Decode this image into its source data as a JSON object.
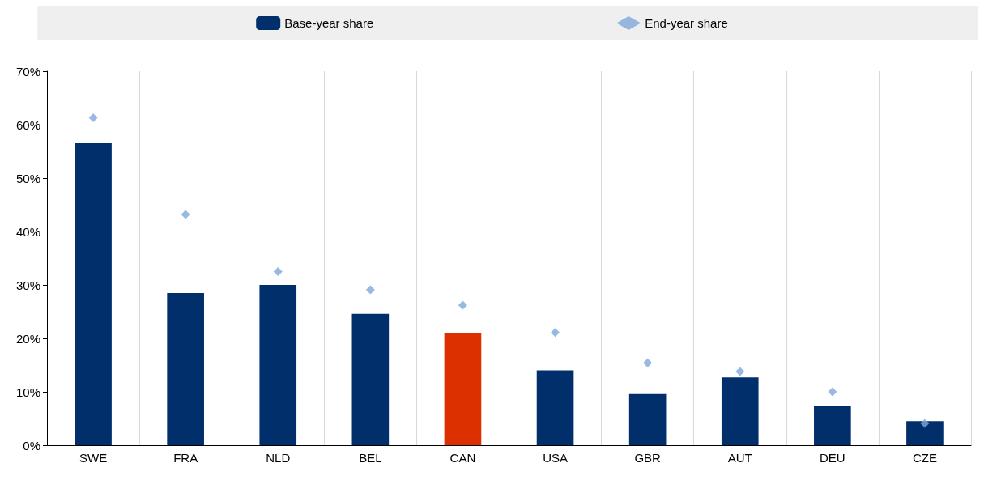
{
  "chart_data": {
    "type": "bar",
    "categories": [
      "SWE",
      "FRA",
      "NLD",
      "BEL",
      "CAN",
      "USA",
      "GBR",
      "AUT",
      "DEU",
      "CZE"
    ],
    "series": [
      {
        "name": "Base-year share",
        "colors": [
          "#002f6c",
          "#002f6c",
          "#002f6c",
          "#002f6c",
          "#dc3000",
          "#002f6c",
          "#002f6c",
          "#002f6c",
          "#002f6c",
          "#002f6c"
        ],
        "color": "#002f6c",
        "values": [
          56.5,
          28.5,
          30.0,
          24.6,
          21.0,
          14.0,
          9.6,
          12.7,
          7.3,
          4.5
        ]
      },
      {
        "name": "End-year share",
        "type": "scatter",
        "color": "#7fa7d9",
        "marker": "diamond",
        "values": [
          61.3,
          43.2,
          32.5,
          29.1,
          26.2,
          21.1,
          15.4,
          13.8,
          10.0,
          4.1
        ]
      }
    ],
    "ylim": [
      0,
      70
    ],
    "yticks": [
      {
        "value": 0,
        "label": "0%"
      },
      {
        "value": 10,
        "label": "10%"
      },
      {
        "value": 20,
        "label": "20%"
      },
      {
        "value": 30,
        "label": "30%"
      },
      {
        "value": 40,
        "label": "40%"
      },
      {
        "value": 50,
        "label": "50%"
      },
      {
        "value": 60,
        "label": "60%"
      },
      {
        "value": 70,
        "label": "70%"
      }
    ],
    "grid": "x",
    "legend": "top"
  }
}
